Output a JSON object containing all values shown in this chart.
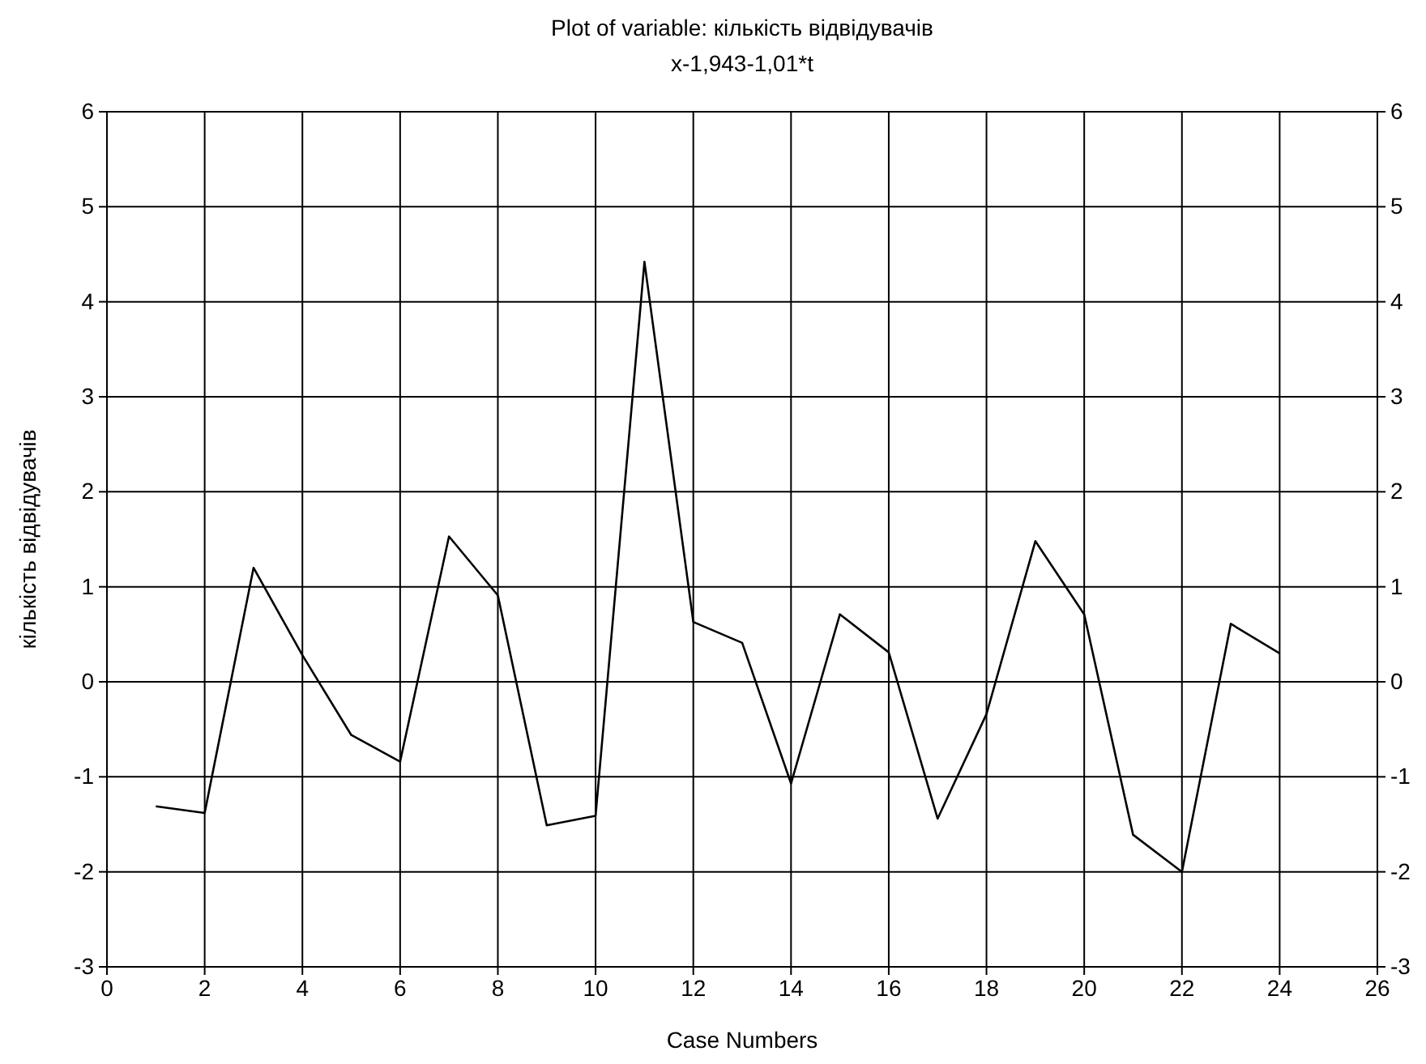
{
  "chart_data": {
    "type": "line",
    "title": "Plot of variable: кількість відвідувачів",
    "subtitle": "x-1,943-1,01*t",
    "xlabel": "Case Numbers",
    "ylabel": "кількість відвідувачів",
    "x": [
      1,
      2,
      3,
      4,
      5,
      6,
      7,
      8,
      9,
      10,
      11,
      12,
      13,
      14,
      15,
      16,
      17,
      18,
      19,
      20,
      21,
      22,
      23,
      24
    ],
    "series": [
      {
        "color": "#000000",
        "values": [
          -1.31,
          -1.38,
          1.2,
          0.28,
          -0.56,
          -0.84,
          1.53,
          0.91,
          -1.51,
          -1.41,
          4.42,
          0.63,
          0.41,
          -1.07,
          0.71,
          0.31,
          -1.44,
          -0.34,
          1.48,
          0.71,
          -1.61,
          -2.0,
          0.61,
          0.3
        ]
      }
    ],
    "xlim": [
      0,
      26
    ],
    "xticks": [
      0,
      2,
      4,
      6,
      8,
      10,
      12,
      14,
      16,
      18,
      20,
      22,
      24,
      26
    ],
    "ylim": [
      -3,
      6
    ],
    "yticks": [
      -3,
      -2,
      -1,
      0,
      1,
      2,
      3,
      4,
      5,
      6
    ],
    "y2lim": [
      -3,
      6
    ],
    "y2ticks": [
      -3,
      -2,
      -1,
      0,
      1,
      2,
      3,
      4,
      5,
      6
    ],
    "grid": true,
    "marker": "none",
    "line_style": "solid"
  }
}
